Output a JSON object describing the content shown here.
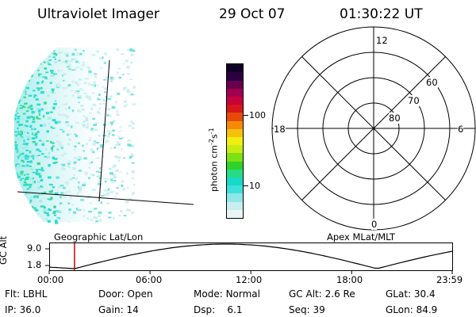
{
  "header": {
    "instrument": "Ultraviolet Imager",
    "date": "29 Oct 07",
    "time": "01:30:22 UT"
  },
  "colorbar": {
    "unit_label": "photon cm",
    "unit_exp1": "-2",
    "unit_s": "s",
    "unit_exp2": "-1",
    "ticks": [
      "100",
      "10"
    ],
    "colors": [
      "#e8f6f6",
      "#c8eeee",
      "#8fe6e6",
      "#3ee0da",
      "#16d9c8",
      "#27db84",
      "#2ed22a",
      "#7ee014",
      "#c7ec12",
      "#f2ee10",
      "#f7c10a",
      "#f58a08",
      "#e84a0c",
      "#d61618",
      "#c8003c",
      "#a0004e",
      "#68004e",
      "#2b0042",
      "#100026"
    ]
  },
  "polar_plot": {
    "labels": {
      "top": "12",
      "bottom": "0",
      "left": "18",
      "right": "6"
    },
    "latitude_labels": [
      "60",
      "70",
      "80"
    ]
  },
  "timeline": {
    "y_axis_title": "GC Alt",
    "y_ticks": [
      "9.0",
      "1.8"
    ],
    "left_label": "Geographic Lat/Lon",
    "right_label": "Apex MLat/MLT",
    "x_ticks": [
      "00:00",
      "06:00",
      "12:00",
      "18:00",
      "23:59"
    ],
    "marker_time": "01:30:22",
    "marker_color": "#d00000"
  },
  "info": {
    "row1": [
      {
        "key": "Flt:",
        "value": "LBHL"
      },
      {
        "key": "Door:",
        "value": "Open"
      },
      {
        "key": "Mode:",
        "value": "Normal"
      },
      {
        "key": "GC Alt:",
        "value": "2.6 Re"
      },
      {
        "key": "GLat:",
        "value": "30.4"
      }
    ],
    "row2": [
      {
        "key": "IP:",
        "value": "36.0"
      },
      {
        "key": "Gain:",
        "value": "14"
      },
      {
        "key": "Dsp:",
        "value": "6.1"
      },
      {
        "key": "Seq:",
        "value": "39"
      },
      {
        "key": "GLon:",
        "value": "84.9"
      }
    ]
  }
}
